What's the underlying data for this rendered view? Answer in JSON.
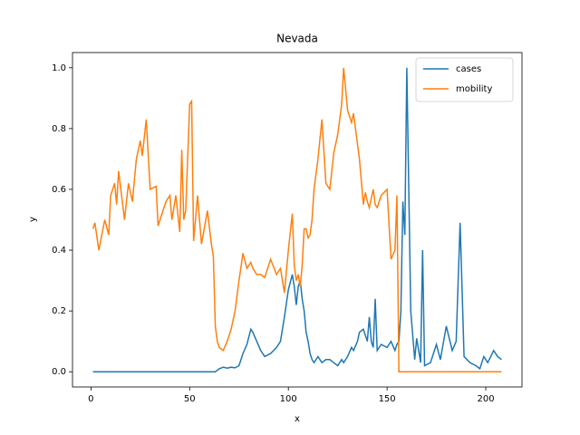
{
  "chart_data": {
    "type": "line",
    "title": "Nevada",
    "x_label": "x",
    "y_label": "y",
    "x": [
      1,
      2,
      4,
      7,
      9,
      10,
      12,
      13,
      14,
      17,
      19,
      21,
      23,
      25,
      26,
      28,
      30,
      33,
      34,
      36,
      38,
      40,
      41,
      43,
      45,
      46,
      47,
      48,
      50,
      51,
      52,
      54,
      56,
      59,
      61,
      62,
      63,
      64,
      65,
      67,
      69,
      71,
      73,
      75,
      77,
      79,
      81,
      82,
      84,
      86,
      88,
      91,
      94,
      96,
      98,
      100,
      102,
      103,
      104,
      105,
      106,
      107,
      108,
      109,
      110,
      111,
      112,
      113,
      115,
      117,
      119,
      121,
      123,
      125,
      127,
      128,
      130,
      132,
      133,
      135,
      136,
      138,
      139,
      140,
      141,
      142,
      143,
      144,
      145,
      147,
      150,
      152,
      154,
      155,
      156,
      157,
      158,
      159,
      160,
      161,
      162,
      164,
      165,
      167,
      168,
      169,
      172,
      175,
      177,
      180,
      183,
      185,
      187,
      189,
      192,
      195,
      197,
      199,
      201,
      204,
      206,
      208
    ],
    "series": [
      {
        "name": "cases",
        "color": "#1f77b4",
        "values": [
          0,
          0,
          0,
          0,
          0,
          0,
          0,
          0,
          0,
          0,
          0,
          0,
          0,
          0,
          0,
          0,
          0,
          0,
          0,
          0,
          0,
          0,
          0,
          0,
          0,
          0,
          0,
          0,
          0,
          0,
          0,
          0,
          0,
          0,
          0,
          0,
          0,
          0.005,
          0.01,
          0.015,
          0.012,
          0.015,
          0.013,
          0.02,
          0.06,
          0.09,
          0.14,
          0.13,
          0.1,
          0.07,
          0.05,
          0.06,
          0.08,
          0.1,
          0.18,
          0.27,
          0.32,
          0.28,
          0.22,
          0.28,
          0.3,
          0.24,
          0.2,
          0.13,
          0.1,
          0.06,
          0.04,
          0.03,
          0.05,
          0.03,
          0.04,
          0.04,
          0.03,
          0.02,
          0.04,
          0.03,
          0.05,
          0.08,
          0.07,
          0.1,
          0.13,
          0.14,
          0.12,
          0.1,
          0.18,
          0.1,
          0.08,
          0.24,
          0.07,
          0.09,
          0.08,
          0.1,
          0.07,
          0.09,
          0.1,
          0.2,
          0.56,
          0.45,
          1.0,
          0.6,
          0.2,
          0.04,
          0.11,
          0.03,
          0.4,
          0.02,
          0.03,
          0.09,
          0.04,
          0.15,
          0.07,
          0.1,
          0.49,
          0.05,
          0.03,
          0.02,
          0.01,
          0.05,
          0.03,
          0.07,
          0.05,
          0.04
        ]
      },
      {
        "name": "mobility",
        "color": "#ff7f0e",
        "values": [
          0.47,
          0.49,
          0.4,
          0.5,
          0.45,
          0.58,
          0.62,
          0.55,
          0.66,
          0.5,
          0.62,
          0.56,
          0.7,
          0.76,
          0.71,
          0.83,
          0.6,
          0.61,
          0.48,
          0.52,
          0.56,
          0.58,
          0.5,
          0.58,
          0.46,
          0.73,
          0.5,
          0.53,
          0.88,
          0.89,
          0.43,
          0.58,
          0.42,
          0.53,
          0.42,
          0.38,
          0.15,
          0.1,
          0.08,
          0.07,
          0.1,
          0.14,
          0.2,
          0.3,
          0.39,
          0.34,
          0.36,
          0.34,
          0.32,
          0.32,
          0.31,
          0.37,
          0.32,
          0.34,
          0.26,
          0.4,
          0.52,
          0.35,
          0.3,
          0.32,
          0.28,
          0.35,
          0.47,
          0.47,
          0.44,
          0.45,
          0.5,
          0.6,
          0.7,
          0.83,
          0.62,
          0.6,
          0.72,
          0.78,
          0.88,
          1.0,
          0.86,
          0.82,
          0.85,
          0.75,
          0.7,
          0.55,
          0.59,
          0.56,
          0.54,
          0.57,
          0.6,
          0.55,
          0.54,
          0.58,
          0.6,
          0.37,
          0.4,
          0.58,
          0,
          0,
          0,
          0,
          0,
          0,
          0,
          0,
          0,
          0,
          0,
          0,
          0,
          0,
          0,
          0,
          0,
          0,
          0,
          0,
          0,
          0,
          0,
          0,
          0,
          0,
          0,
          0
        ]
      }
    ],
    "xlim": [
      -9.35,
      218.35
    ],
    "ylim": [
      -0.05,
      1.05
    ],
    "xticks": [
      0,
      50,
      100,
      150,
      200
    ],
    "yticks": [
      {
        "value": 0,
        "label": "0.0"
      },
      {
        "value": 0.2,
        "label": "0.2"
      },
      {
        "value": 0.4,
        "label": "0.4"
      },
      {
        "value": 0.6,
        "label": "0.6"
      },
      {
        "value": 0.8,
        "label": "0.8"
      },
      {
        "value": 1.0,
        "label": "1.0"
      }
    ],
    "legend": "upper right"
  }
}
